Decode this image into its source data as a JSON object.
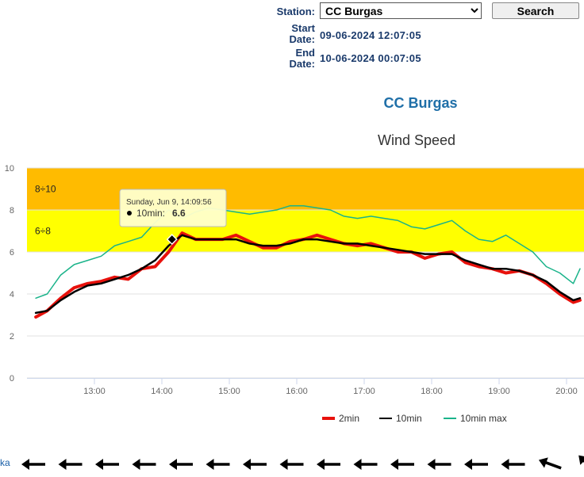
{
  "form": {
    "station_label": "Station:",
    "station_value": "CC Burgas",
    "search_label": "Search",
    "start_label_1": "Start",
    "start_label_2": "Date:",
    "start_value": "09-06-2024 12:07:05",
    "end_label_1": "End",
    "end_label_2": "Date:",
    "end_value": "10-06-2024 00:07:05"
  },
  "partial_link": "ka",
  "colors": {
    "title": "#1f6fa8",
    "band_8_10": "#ffbb00",
    "band_6_8": "#ffff00",
    "series_2min": "#e8110c",
    "series_10min": "#000000",
    "series_10min_max": "#1ab38a",
    "arrow": "#000000"
  },
  "wind_direction": {
    "icon": "wind-direction-arrow-icon",
    "rotations_deg": [
      180,
      180,
      180,
      180,
      180,
      180,
      180,
      180,
      180,
      180,
      180,
      180,
      180,
      180,
      200,
      225,
      250
    ]
  },
  "chart_data": {
    "type": "line",
    "title": "CC Burgas",
    "subtitle": "Wind Speed",
    "xlabel": "",
    "ylabel": "",
    "x_ticks": [
      "13:00",
      "14:00",
      "15:00",
      "16:00",
      "17:00",
      "18:00",
      "19:00",
      "20:00"
    ],
    "y_ticks": [
      0,
      2,
      4,
      6,
      8,
      10
    ],
    "ylim": [
      0,
      10
    ],
    "xlim_hours": [
      12.13,
      20.2
    ],
    "grid": true,
    "legend_position": "bottom-right",
    "bands": [
      {
        "label": "8÷10",
        "from": 8,
        "to": 10,
        "color": "#ffbb00"
      },
      {
        "label": "6÷8",
        "from": 6,
        "to": 8,
        "color": "#ffff00"
      }
    ],
    "time_hours": [
      12.13,
      12.3,
      12.5,
      12.7,
      12.9,
      13.1,
      13.3,
      13.5,
      13.7,
      13.9,
      14.1,
      14.3,
      14.5,
      14.7,
      14.9,
      15.1,
      15.3,
      15.5,
      15.7,
      15.9,
      16.1,
      16.3,
      16.5,
      16.7,
      16.9,
      17.1,
      17.3,
      17.5,
      17.7,
      17.9,
      18.1,
      18.3,
      18.5,
      18.7,
      18.9,
      19.1,
      19.3,
      19.5,
      19.7,
      19.9,
      20.1,
      20.2
    ],
    "series": [
      {
        "name": "2min",
        "color": "#e8110c",
        "values": [
          2.9,
          3.2,
          3.8,
          4.3,
          4.5,
          4.6,
          4.8,
          4.7,
          5.2,
          5.3,
          6.0,
          6.9,
          6.6,
          6.6,
          6.6,
          6.8,
          6.5,
          6.2,
          6.2,
          6.5,
          6.6,
          6.8,
          6.6,
          6.4,
          6.3,
          6.4,
          6.2,
          6.0,
          6.0,
          5.7,
          5.9,
          6.0,
          5.5,
          5.3,
          5.2,
          5.0,
          5.1,
          4.9,
          4.5,
          4.0,
          3.6,
          3.7
        ]
      },
      {
        "name": "10min",
        "color": "#000000",
        "values": [
          3.1,
          3.2,
          3.7,
          4.1,
          4.4,
          4.5,
          4.7,
          4.9,
          5.2,
          5.6,
          6.3,
          6.8,
          6.6,
          6.6,
          6.6,
          6.6,
          6.4,
          6.3,
          6.3,
          6.4,
          6.6,
          6.6,
          6.5,
          6.4,
          6.4,
          6.3,
          6.2,
          6.1,
          6.0,
          5.9,
          5.9,
          5.9,
          5.6,
          5.4,
          5.2,
          5.2,
          5.1,
          4.9,
          4.6,
          4.1,
          3.7,
          3.8
        ]
      },
      {
        "name": "10min max",
        "color": "#1ab38a",
        "values": [
          3.8,
          4.0,
          4.9,
          5.4,
          5.6,
          5.8,
          6.3,
          6.5,
          6.7,
          7.4,
          8.0,
          7.6,
          7.9,
          8.1,
          8.0,
          7.9,
          7.8,
          7.9,
          8.0,
          8.2,
          8.2,
          8.1,
          8.0,
          7.7,
          7.6,
          7.7,
          7.6,
          7.5,
          7.2,
          7.1,
          7.3,
          7.5,
          7.0,
          6.6,
          6.5,
          6.8,
          6.4,
          6.0,
          5.3,
          5.0,
          4.5,
          5.2
        ]
      }
    ],
    "tooltip": {
      "time_label": "Sunday, Jun 9, 14:09:56",
      "series_label": "10min:",
      "value_label": "6.6",
      "x_hours": 14.15,
      "y": 6.6
    }
  }
}
